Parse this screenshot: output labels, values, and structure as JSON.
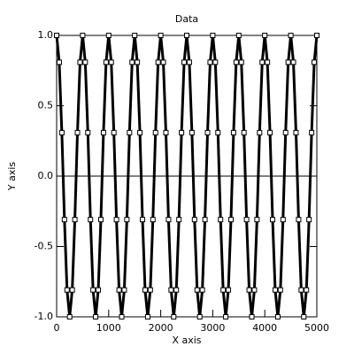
{
  "chart_data": {
    "type": "line",
    "title": "Data",
    "x_label": "X axis",
    "y_label": "Y axis",
    "x": [
      0,
      50,
      100,
      150,
      200,
      250,
      300,
      350,
      400,
      450,
      500,
      550,
      600,
      650,
      700,
      750,
      800,
      850,
      900,
      950,
      1000,
      1050,
      1100,
      1150,
      1200,
      1250,
      1300,
      1350,
      1400,
      1450,
      1500,
      1550,
      1600,
      1650,
      1700,
      1750,
      1800,
      1850,
      1900,
      1950,
      2000,
      2050,
      2100,
      2150,
      2200,
      2250,
      2300,
      2350,
      2400,
      2450,
      2500,
      2550,
      2600,
      2650,
      2700,
      2750,
      2800,
      2850,
      2900,
      2950,
      3000,
      3050,
      3100,
      3150,
      3200,
      3250,
      3300,
      3350,
      3400,
      3450,
      3500,
      3550,
      3600,
      3650,
      3700,
      3750,
      3800,
      3850,
      3900,
      3950,
      4000,
      4050,
      4100,
      4150,
      4200,
      4250,
      4300,
      4350,
      4400,
      4450,
      4500,
      4550,
      4600,
      4650,
      4700,
      4750,
      4800,
      4850,
      4900,
      4950,
      5000
    ],
    "series": [
      {
        "color": "#000000",
        "marker": "square",
        "values": [
          1,
          0.809,
          0.309,
          -0.309,
          -0.809,
          -1,
          -0.809,
          -0.309,
          0.309,
          0.809,
          1,
          0.809,
          0.309,
          -0.309,
          -0.809,
          -1,
          -0.809,
          -0.309,
          0.309,
          0.809,
          1,
          0.809,
          0.309,
          -0.309,
          -0.809,
          -1,
          -0.809,
          -0.309,
          0.309,
          0.809,
          1,
          0.809,
          0.309,
          -0.309,
          -0.809,
          -1,
          -0.809,
          -0.309,
          0.309,
          0.809,
          1,
          0.809,
          0.309,
          -0.309,
          -0.809,
          -1,
          -0.809,
          -0.309,
          0.309,
          0.809,
          1,
          0.809,
          0.309,
          -0.309,
          -0.809,
          -1,
          -0.809,
          -0.309,
          0.309,
          0.809,
          1,
          0.809,
          0.309,
          -0.309,
          -0.809,
          -1,
          -0.809,
          -0.309,
          0.309,
          0.809,
          1,
          0.809,
          0.309,
          -0.309,
          -0.809,
          -1,
          -0.809,
          -0.309,
          0.309,
          0.809,
          1,
          0.809,
          0.309,
          -0.309,
          -0.809,
          -1,
          -0.809,
          -0.309,
          0.309,
          0.809,
          1,
          0.809,
          0.309,
          -0.309,
          -0.809,
          -1,
          -0.809,
          -0.309,
          0.309,
          0.809,
          1
        ]
      }
    ],
    "xlim": [
      0,
      5000
    ],
    "xticks": [
      0,
      1000,
      2000,
      3000,
      4000,
      5000
    ],
    "ylim": [
      -1,
      1
    ],
    "yticks": [
      {
        "value": -1,
        "label": "-1.0"
      },
      {
        "value": -0.5,
        "label": "-0.5"
      },
      {
        "value": 0,
        "label": "0.0"
      },
      {
        "value": 0.5,
        "label": "0.5"
      },
      {
        "value": 1,
        "label": "1.0"
      }
    ],
    "zero_line": true
  }
}
